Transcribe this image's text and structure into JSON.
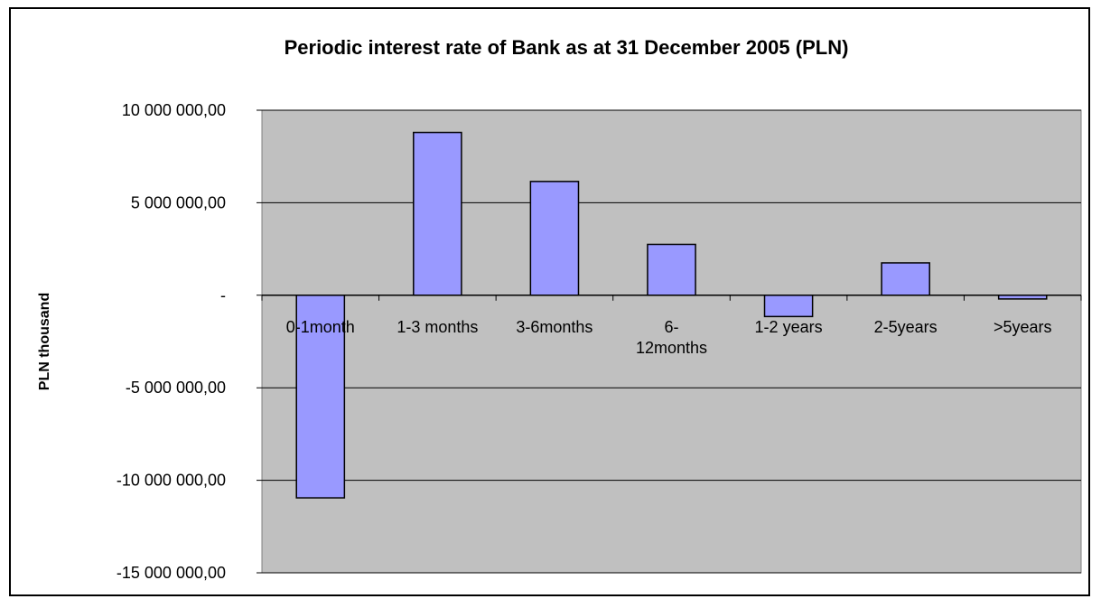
{
  "chart_data": {
    "type": "bar",
    "title": "Periodic interest rate of Bank as at 31 December 2005 (PLN)",
    "xlabel": "",
    "ylabel": "PLN thousand",
    "categories": [
      "0-1month",
      "1-3 months",
      "3-6months",
      "6-12months",
      "1-2 years",
      "2-5years",
      ">5years"
    ],
    "category_lines": [
      [
        "0-1month"
      ],
      [
        "1-3 months"
      ],
      [
        "3-6months"
      ],
      [
        "6-",
        "12months"
      ],
      [
        "1-2 years"
      ],
      [
        "2-5years"
      ],
      [
        ">5years"
      ]
    ],
    "values": [
      -10950000,
      8800000,
      6150000,
      2750000,
      -1150000,
      1750000,
      -200000
    ],
    "ylim": [
      -15000000,
      10000000
    ],
    "yticks": [
      10000000,
      5000000,
      0,
      -5000000,
      -10000000,
      -15000000
    ],
    "ytick_labels": [
      "10 000 000,00",
      "5 000 000,00",
      "-",
      "-5 000 000,00",
      "-10 000 000,00",
      "-15 000 000,00"
    ],
    "grid": true,
    "legend": "none",
    "colors": {
      "bar_fill": "#9999ff",
      "bar_stroke": "#000000",
      "plot_background": "#c0c0c0",
      "gridline": "#000000"
    }
  }
}
